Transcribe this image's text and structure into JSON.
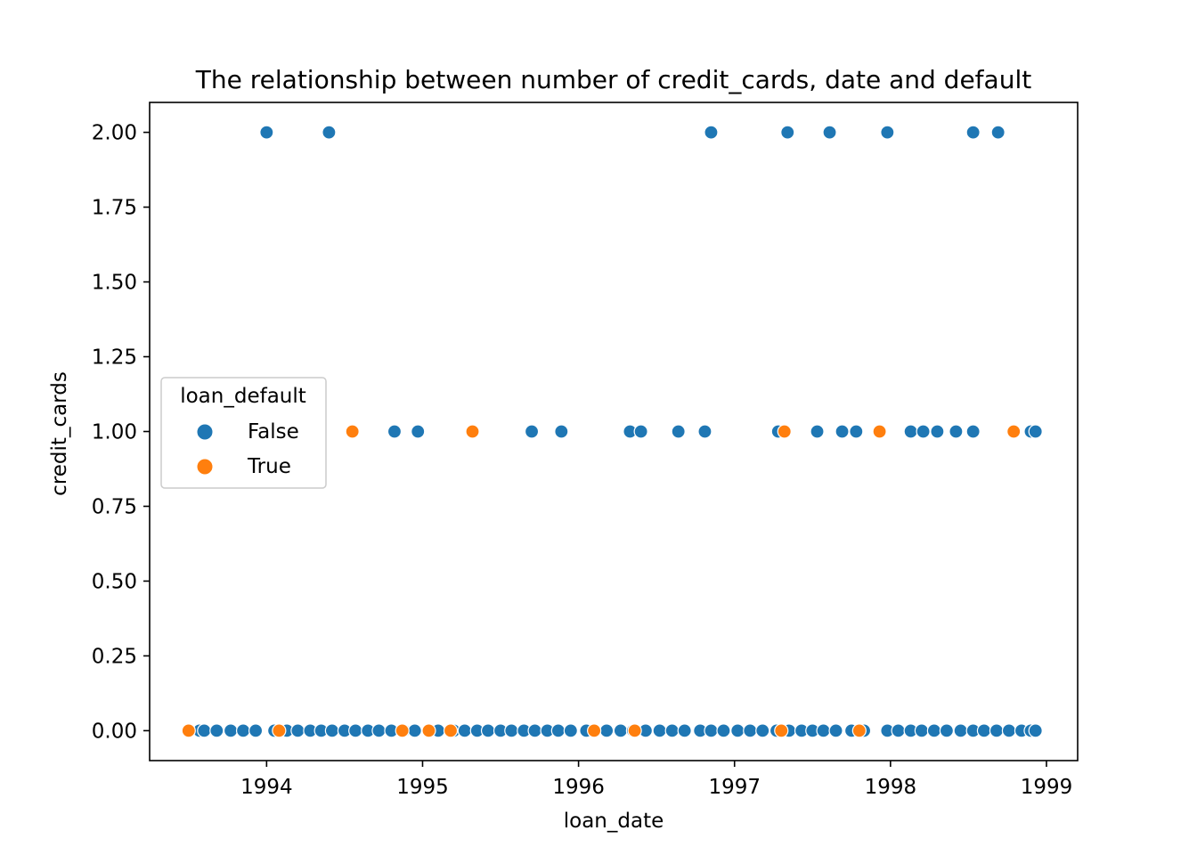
{
  "chart_data": {
    "type": "scatter",
    "title": "The relationship between number of credit_cards, date and default",
    "xlabel": "loan_date",
    "ylabel": "credit_cards",
    "xlim": [
      1993.25,
      1999.2
    ],
    "ylim": [
      -0.1,
      2.1
    ],
    "x_ticks": [
      1994,
      1995,
      1996,
      1997,
      1998,
      1999
    ],
    "x_tick_labels": [
      "1994",
      "1995",
      "1996",
      "1997",
      "1998",
      "1999"
    ],
    "y_ticks": [
      0,
      0.25,
      0.5,
      0.75,
      1,
      1.25,
      1.5,
      1.75,
      2
    ],
    "y_tick_labels": [
      "0.00",
      "0.25",
      "0.50",
      "0.75",
      "1.00",
      "1.25",
      "1.50",
      "1.75",
      "2.00"
    ],
    "grid": false,
    "legend": {
      "title": "loan_default",
      "placement": "center-left",
      "entries": [
        {
          "label": "False",
          "color": "#1f77b4"
        },
        {
          "label": "True",
          "color": "#ff7f0e"
        }
      ]
    },
    "series": [
      {
        "name": "False",
        "color": "#1f77b4",
        "points": [
          [
            1994.0,
            2
          ],
          [
            1994.4,
            2
          ],
          [
            1996.85,
            2
          ],
          [
            1997.34,
            2
          ],
          [
            1997.61,
            2
          ],
          [
            1997.98,
            2
          ],
          [
            1998.53,
            2
          ],
          [
            1998.69,
            2
          ],
          [
            1994.82,
            1
          ],
          [
            1994.97,
            1
          ],
          [
            1995.7,
            1
          ],
          [
            1995.89,
            1
          ],
          [
            1996.33,
            1
          ],
          [
            1996.4,
            1
          ],
          [
            1996.64,
            1
          ],
          [
            1996.81,
            1
          ],
          [
            1997.28,
            1
          ],
          [
            1997.53,
            1
          ],
          [
            1997.69,
            1
          ],
          [
            1997.78,
            1
          ],
          [
            1998.13,
            1
          ],
          [
            1998.21,
            1
          ],
          [
            1998.3,
            1
          ],
          [
            1998.42,
            1
          ],
          [
            1998.53,
            1
          ],
          [
            1998.9,
            1
          ],
          [
            1998.93,
            1
          ],
          [
            1993.57,
            0
          ],
          [
            1993.6,
            0
          ],
          [
            1993.68,
            0
          ],
          [
            1993.77,
            0
          ],
          [
            1993.85,
            0
          ],
          [
            1993.93,
            0
          ],
          [
            1994.05,
            0
          ],
          [
            1994.13,
            0
          ],
          [
            1994.2,
            0
          ],
          [
            1994.28,
            0
          ],
          [
            1994.35,
            0
          ],
          [
            1994.42,
            0
          ],
          [
            1994.5,
            0
          ],
          [
            1994.57,
            0
          ],
          [
            1994.65,
            0
          ],
          [
            1994.72,
            0
          ],
          [
            1994.8,
            0
          ],
          [
            1994.88,
            0
          ],
          [
            1994.95,
            0
          ],
          [
            1995.1,
            0
          ],
          [
            1995.2,
            0
          ],
          [
            1995.27,
            0
          ],
          [
            1995.35,
            0
          ],
          [
            1995.42,
            0
          ],
          [
            1995.5,
            0
          ],
          [
            1995.57,
            0
          ],
          [
            1995.65,
            0
          ],
          [
            1995.72,
            0
          ],
          [
            1995.8,
            0
          ],
          [
            1995.87,
            0
          ],
          [
            1995.95,
            0
          ],
          [
            1996.05,
            0
          ],
          [
            1996.18,
            0
          ],
          [
            1996.27,
            0
          ],
          [
            1996.35,
            0
          ],
          [
            1996.43,
            0
          ],
          [
            1996.52,
            0
          ],
          [
            1996.6,
            0
          ],
          [
            1996.68,
            0
          ],
          [
            1996.78,
            0
          ],
          [
            1996.85,
            0
          ],
          [
            1996.93,
            0
          ],
          [
            1997.02,
            0
          ],
          [
            1997.1,
            0
          ],
          [
            1997.18,
            0
          ],
          [
            1997.27,
            0
          ],
          [
            1997.35,
            0
          ],
          [
            1997.43,
            0
          ],
          [
            1997.5,
            0
          ],
          [
            1997.57,
            0
          ],
          [
            1997.65,
            0
          ],
          [
            1997.75,
            0
          ],
          [
            1997.83,
            0
          ],
          [
            1997.98,
            0
          ],
          [
            1998.05,
            0
          ],
          [
            1998.13,
            0
          ],
          [
            1998.2,
            0
          ],
          [
            1998.28,
            0
          ],
          [
            1998.36,
            0
          ],
          [
            1998.45,
            0
          ],
          [
            1998.53,
            0
          ],
          [
            1998.6,
            0
          ],
          [
            1998.68,
            0
          ],
          [
            1998.76,
            0
          ],
          [
            1998.84,
            0
          ],
          [
            1998.9,
            0
          ],
          [
            1998.93,
            0
          ]
        ]
      },
      {
        "name": "True",
        "color": "#ff7f0e",
        "points": [
          [
            1994.55,
            1
          ],
          [
            1995.32,
            1
          ],
          [
            1997.32,
            1
          ],
          [
            1997.93,
            1
          ],
          [
            1998.79,
            1
          ],
          [
            1993.5,
            0
          ],
          [
            1994.08,
            0
          ],
          [
            1994.87,
            0
          ],
          [
            1995.04,
            0
          ],
          [
            1995.18,
            0
          ],
          [
            1996.1,
            0
          ],
          [
            1996.36,
            0
          ],
          [
            1997.3,
            0
          ],
          [
            1997.8,
            0
          ]
        ]
      }
    ]
  }
}
